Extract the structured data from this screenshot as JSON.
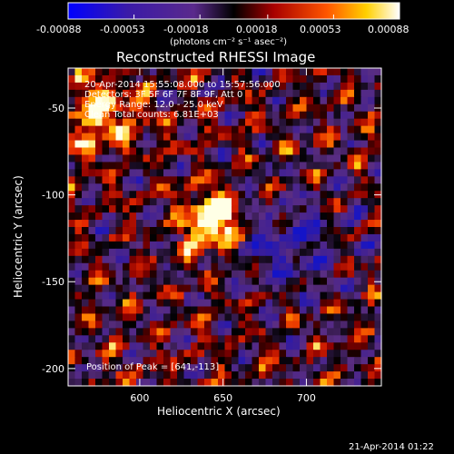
{
  "colorbar": {
    "ticks": [
      "-0.00088",
      "-0.00053",
      "-0.00018",
      "0.00018",
      "0.00053",
      "0.00088"
    ],
    "units": "(photons cm⁻² s⁻¹ asec⁻²)",
    "range": [
      -0.00088,
      0.00088
    ]
  },
  "chart_data": {
    "type": "heatmap",
    "title": "Reconstructed RHESSI Image",
    "xlabel": "Heliocentric X (arcsec)",
    "ylabel": "Heliocentric Y (arcsec)",
    "xlim": [
      557,
      745
    ],
    "ylim": [
      -210,
      -27
    ],
    "xticks": [
      600,
      650,
      700
    ],
    "yticks": [
      -50,
      -100,
      -150,
      -200
    ],
    "annotations": [
      "20-Apr-2014 15:55:08.000 to 15:57:56.000",
      "Detectors: 3F 5F 6F 7F 8F 9F, Att 0",
      "Energy Range: 12.0 - 25.0 keV",
      "Clean     Total counts: 6.81E+03"
    ],
    "peak_label": "Position of Peak = [641,-113]",
    "peak": [
      641,
      -113
    ]
  },
  "footer": {
    "timestamp": "21-Apr-2014 01:22"
  }
}
